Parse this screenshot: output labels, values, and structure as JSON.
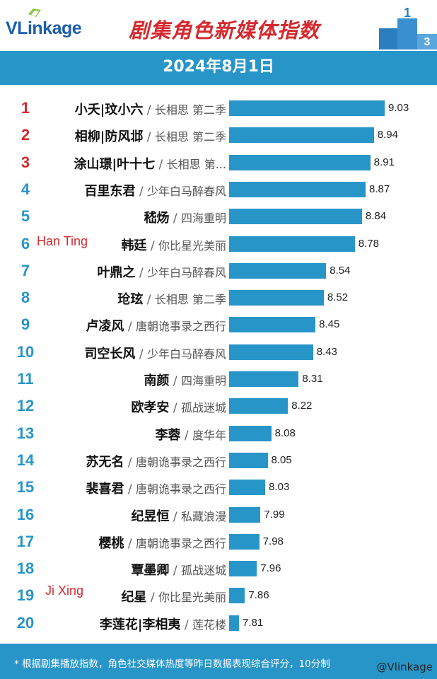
{
  "brand": "VLinkage",
  "title": "剧集角色新媒体指数",
  "date": "2024年8月1日",
  "footnote": "* 根据剧集播放指数，角色社交媒体热度等昨日数据表现综合评分，10分制",
  "watermark": "@Vlinkage",
  "colors": {
    "accent": "#2895c9",
    "title_red": "#d42a2f",
    "rank_top": "#d42a2f",
    "rank_rest": "#2895c9"
  },
  "annotations": [
    "Han Ting",
    "Ji Xing"
  ],
  "chart_data": {
    "type": "bar",
    "orientation": "horizontal",
    "title": "剧集角色新媒体指数",
    "subtitle": "2024年8月1日",
    "xlim": [
      0,
      10
    ],
    "rows": [
      {
        "rank": "1",
        "name": "小夭|玟小六",
        "drama": "长相思 第二季",
        "value": 9.03
      },
      {
        "rank": "2",
        "name": "相柳|防风邶",
        "drama": "长相思 第二季",
        "value": 8.94
      },
      {
        "rank": "3",
        "name": "涂山璟|叶十七",
        "drama": "长相思 第...",
        "value": 8.91
      },
      {
        "rank": "4",
        "name": "百里东君",
        "drama": "少年白马醉春风",
        "value": 8.87
      },
      {
        "rank": "5",
        "name": "嵇炀",
        "drama": "四海重明",
        "value": 8.84
      },
      {
        "rank": "6",
        "name": "韩廷",
        "drama": "你比星光美丽",
        "value": 8.78,
        "note": "Han Ting"
      },
      {
        "rank": "7",
        "name": "叶鼎之",
        "drama": "少年白马醉春风",
        "value": 8.54
      },
      {
        "rank": "8",
        "name": "玱玹",
        "drama": "长相思 第二季",
        "value": 8.52
      },
      {
        "rank": "9",
        "name": "卢凌风",
        "drama": "唐朝诡事录之西行",
        "value": 8.45
      },
      {
        "rank": "10",
        "name": "司空长风",
        "drama": "少年白马醉春风",
        "value": 8.43
      },
      {
        "rank": "11",
        "name": "南颜",
        "drama": "四海重明",
        "value": 8.31
      },
      {
        "rank": "12",
        "name": "欧孝安",
        "drama": "孤战迷城",
        "value": 8.22
      },
      {
        "rank": "13",
        "name": "李蓉",
        "drama": "度华年",
        "value": 8.08
      },
      {
        "rank": "14",
        "name": "苏无名",
        "drama": "唐朝诡事录之西行",
        "value": 8.05
      },
      {
        "rank": "15",
        "name": "裴喜君",
        "drama": "唐朝诡事录之西行",
        "value": 8.03
      },
      {
        "rank": "16",
        "name": "纪昱恒",
        "drama": "私藏浪漫",
        "value": 7.99
      },
      {
        "rank": "17",
        "name": "樱桃",
        "drama": "唐朝诡事录之西行",
        "value": 7.98
      },
      {
        "rank": "18",
        "name": "覃墨卿",
        "drama": "孤战迷城",
        "value": 7.96
      },
      {
        "rank": "19",
        "name": "纪星",
        "drama": "你比星光美丽",
        "value": 7.86,
        "note": "Ji Xing"
      },
      {
        "rank": "20",
        "name": "李莲花|李相夷",
        "drama": "莲花楼",
        "value": 7.81
      }
    ]
  }
}
